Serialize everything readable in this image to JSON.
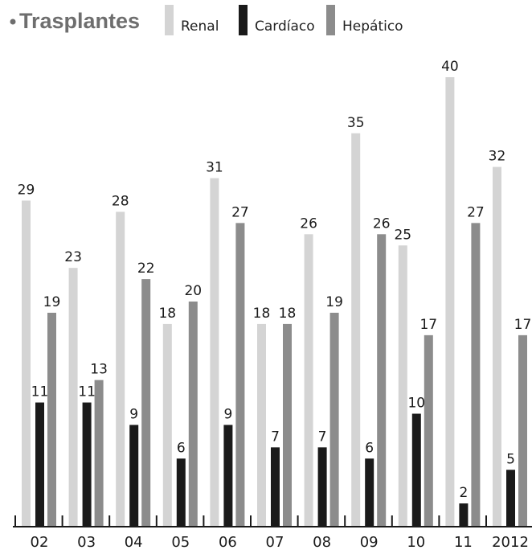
{
  "chart_data": {
    "type": "bar",
    "title": "Trasplantes",
    "categories": [
      "02",
      "03",
      "04",
      "05",
      "06",
      "07",
      "08",
      "09",
      "10",
      "11",
      "2012"
    ],
    "series": [
      {
        "name": "Renal",
        "color": "#d4d4d4",
        "values": [
          29,
          23,
          28,
          18,
          31,
          18,
          26,
          35,
          25,
          40,
          32
        ]
      },
      {
        "name": "Cardíaco",
        "color": "#1a1a1a",
        "values": [
          11,
          11,
          9,
          6,
          9,
          7,
          7,
          6,
          10,
          2,
          5
        ]
      },
      {
        "name": "Hepático",
        "color": "#8c8c8c",
        "values": [
          19,
          13,
          22,
          20,
          27,
          18,
          19,
          26,
          17,
          27,
          17
        ]
      }
    ],
    "ylim": [
      0,
      40
    ],
    "grid": false,
    "legend_placement": "top",
    "data_labels": true
  }
}
